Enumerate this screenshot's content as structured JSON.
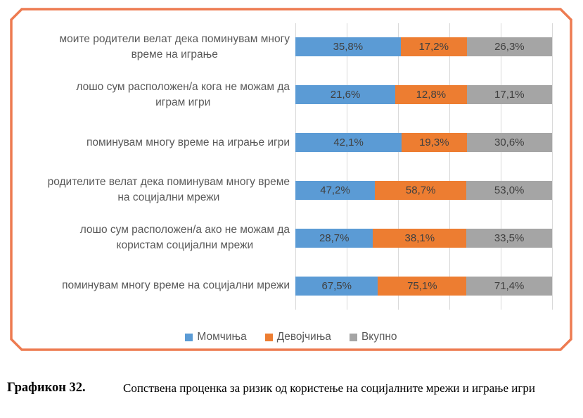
{
  "figure_box": {
    "border_color": "#ED7B51"
  },
  "chart_data": {
    "type": "bar",
    "orientation": "horizontal",
    "stacking": "100% stacked (each bar normalized to the sum of its three series values)",
    "categories": [
      "моите родители велат дека поминувам многу време на играње",
      "лошо сум расположен/а кога не можам да играм игри",
      "поминувам многу време на играње игри",
      "родителите велат дека поминувам многу време на социјални мрежи",
      "лошо сум расположен/а ако не можам да користам социјални мрежи",
      "поминувам многу време на социјални мрежи"
    ],
    "category_display_lines": [
      [
        "моите родители велат дека поминувам многу",
        "време на играње"
      ],
      [
        "лошо сум расположен/а кога не можам да",
        "играм игри"
      ],
      [
        "поминувам многу време на играње игри"
      ],
      [
        "родителите велат дека поминувам многу време",
        "на социјални мрежи"
      ],
      [
        "лошо сум расположен/а ако не можам да",
        "користам социјални мрежи"
      ],
      [
        "поминувам многу време на социјални мрежи"
      ]
    ],
    "series": [
      {
        "name": "Момчиња",
        "color": "#5B9BD5",
        "values": [
          35.8,
          21.6,
          42.1,
          47.2,
          28.7,
          67.5
        ],
        "labels": [
          "35,8%",
          "21,6%",
          "42,1%",
          "47,2%",
          "28,7%",
          "67,5%"
        ]
      },
      {
        "name": "Девојчиња",
        "color": "#ED7D31",
        "values": [
          17.2,
          12.8,
          19.3,
          58.7,
          38.1,
          75.1
        ],
        "labels": [
          "17,2%",
          "12,8%",
          "19,3%",
          "58,7%",
          "38,1%",
          "75,1%"
        ]
      },
      {
        "name": "Вкупно",
        "color": "#A5A5A5",
        "values": [
          26.3,
          17.1,
          30.6,
          53.0,
          33.5,
          71.4
        ],
        "labels": [
          "26,3%",
          "17,1%",
          "30,6%",
          "53,0%",
          "33,5%",
          "71,4%"
        ]
      }
    ],
    "legend": {
      "position": "bottom",
      "entries": [
        "Момчиња",
        "Девојчиња",
        "Вкупно"
      ]
    },
    "gridlines": {
      "count": 6,
      "color": "#D9D9D9"
    },
    "category_text_color": "#595959",
    "value_label_color": "#404040"
  },
  "caption": {
    "label": "Графикон 32.",
    "text": "Сопствена проценка за ризик од користење на социјалните мрежи и играње игри"
  }
}
